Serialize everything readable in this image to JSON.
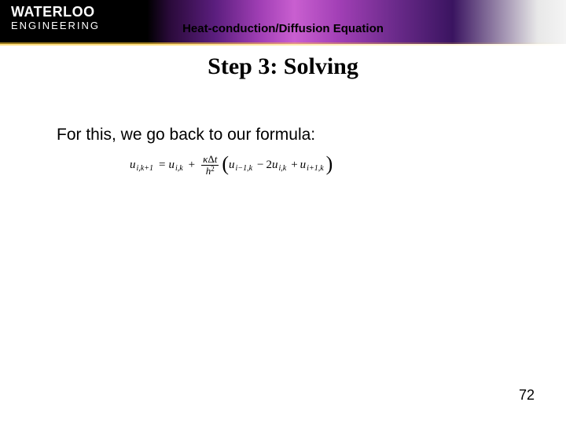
{
  "banner": {
    "university": "WATERLOO",
    "department": "ENGINEERING",
    "topic": "Heat-conduction/Diffusion Equation"
  },
  "title": "Step 3:  Solving",
  "body": "For this, we go back to our formula:",
  "formula": {
    "lhs_u": "u",
    "lhs_sub": "i,k+1",
    "eq": "=",
    "rhs1_u": "u",
    "rhs1_sub": "i,k",
    "plus": "+",
    "frac_num_kappa": "κ",
    "frac_num_delta": "Δ",
    "frac_num_t": "t",
    "frac_den_h": "h",
    "frac_den_exp": "2",
    "lparen": "(",
    "t1_u": "u",
    "t1_sub": "i−1,k",
    "minus1": "−",
    "two": "2",
    "t2_u": "u",
    "t2_sub": "i,k",
    "plus2": "+",
    "t3_u": "u",
    "t3_sub": "i+1,k",
    "rparen": ")"
  },
  "page_number": "72"
}
